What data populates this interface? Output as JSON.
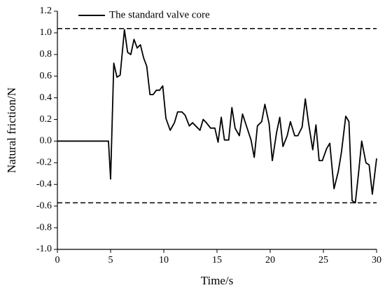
{
  "chart_data": {
    "type": "line",
    "xlabel": "Time/s",
    "ylabel": "Natural friction/N",
    "x": [
      0,
      4.8,
      5.0,
      5.3,
      5.6,
      5.9,
      6.3,
      6.6,
      6.9,
      7.2,
      7.5,
      7.8,
      8.1,
      8.4,
      8.7,
      9.0,
      9.3,
      9.6,
      9.9,
      10.2,
      10.6,
      11.0,
      11.3,
      11.7,
      12.0,
      12.4,
      12.7,
      13.0,
      13.4,
      13.7,
      14.0,
      14.4,
      14.8,
      15.1,
      15.4,
      15.7,
      16.1,
      16.4,
      16.7,
      17.1,
      17.4,
      17.8,
      18.2,
      18.5,
      18.8,
      19.2,
      19.5,
      19.9,
      20.2,
      20.6,
      20.9,
      21.2,
      21.6,
      21.9,
      22.3,
      22.6,
      23.0,
      23.3,
      23.6,
      24.0,
      24.3,
      24.6,
      24.9,
      25.3,
      25.6,
      26.0,
      26.4,
      26.7,
      27.1,
      27.4,
      27.7,
      28.0,
      28.3,
      28.6,
      29.0,
      29.3,
      29.6,
      30.0
    ],
    "series": [
      {
        "name": "The standard valve core",
        "color": "#000000",
        "values": [
          0,
          0,
          -0.35,
          0.72,
          0.59,
          0.61,
          1.03,
          0.82,
          0.8,
          0.94,
          0.86,
          0.89,
          0.77,
          0.69,
          0.43,
          0.43,
          0.47,
          0.47,
          0.51,
          0.21,
          0.1,
          0.17,
          0.27,
          0.27,
          0.24,
          0.14,
          0.17,
          0.14,
          0.1,
          0.2,
          0.17,
          0.12,
          0.12,
          -0.01,
          0.22,
          0.01,
          0.01,
          0.31,
          0.12,
          0.05,
          0.25,
          0.13,
          0.01,
          -0.15,
          0.14,
          0.18,
          0.34,
          0.16,
          -0.18,
          0.08,
          0.22,
          -0.05,
          0.05,
          0.18,
          0.05,
          0.05,
          0.13,
          0.39,
          0.17,
          -0.08,
          0.15,
          -0.18,
          -0.18,
          -0.07,
          -0.02,
          -0.44,
          -0.28,
          -0.1,
          0.23,
          0.18,
          -0.55,
          -0.57,
          -0.3,
          0.0,
          -0.2,
          -0.22,
          -0.49,
          -0.16
        ]
      }
    ],
    "reference_lines": [
      1.04,
      -0.57
    ],
    "xlim": [
      0,
      30
    ],
    "xticks": [
      0,
      5,
      10,
      15,
      20,
      25,
      30
    ],
    "ylim": [
      -1.0,
      1.2
    ],
    "yticks": [
      {
        "value": -1.0,
        "label": "-1.0"
      },
      -0.8,
      -0.6,
      -0.4,
      -0.2,
      {
        "value": 0,
        "label": "0.0"
      },
      0.2,
      0.4,
      0.6,
      0.8,
      {
        "value": 1.0,
        "label": "1.0"
      },
      1.2
    ],
    "legend": "upper left"
  }
}
